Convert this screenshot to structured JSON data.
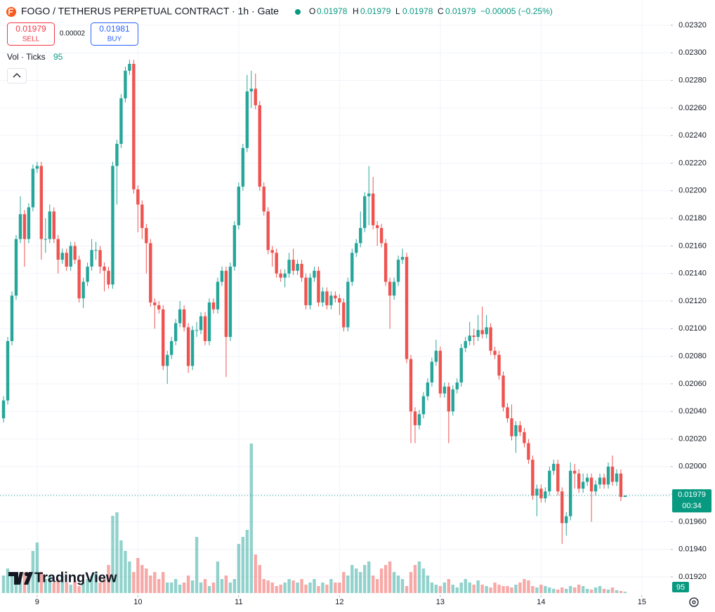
{
  "chart_data": {
    "type": "candlestick",
    "up_color": "#26a69a",
    "down_color": "#ef5350",
    "grid": true,
    "xlim": [
      -0.84,
      158.88
    ],
    "xticks": [
      {
        "value": 8,
        "label": "9"
      },
      {
        "value": 32,
        "label": "10"
      },
      {
        "value": 56,
        "label": "11"
      },
      {
        "value": 80,
        "label": "12"
      },
      {
        "value": 104,
        "label": "13"
      },
      {
        "value": 128,
        "label": "14"
      },
      {
        "value": 152,
        "label": "15"
      }
    ],
    "ylim": [
      0.019068,
      0.023383
    ],
    "yticks": [
      {
        "value": 0.0192,
        "label": "0.01920"
      },
      {
        "value": 0.0194,
        "label": "0.01940"
      },
      {
        "value": 0.0196,
        "label": "0.01960"
      },
      {
        "value": 0.0198,
        "label": "0.01980"
      },
      {
        "value": 0.02,
        "label": "0.02000"
      },
      {
        "value": 0.0202,
        "label": "0.02020"
      },
      {
        "value": 0.0204,
        "label": "0.02040"
      },
      {
        "value": 0.0206,
        "label": "0.02060"
      },
      {
        "value": 0.0208,
        "label": "0.02080"
      },
      {
        "value": 0.021,
        "label": "0.02100"
      },
      {
        "value": 0.0212,
        "label": "0.02120"
      },
      {
        "value": 0.0214,
        "label": "0.02140"
      },
      {
        "value": 0.0216,
        "label": "0.02160"
      },
      {
        "value": 0.0218,
        "label": "0.02180"
      },
      {
        "value": 0.022,
        "label": "0.02200"
      },
      {
        "value": 0.0222,
        "label": "0.02220"
      },
      {
        "value": 0.0224,
        "label": "0.02240"
      },
      {
        "value": 0.0226,
        "label": "0.02260"
      },
      {
        "value": 0.0228,
        "label": "0.02280"
      },
      {
        "value": 0.023,
        "label": "0.02300"
      },
      {
        "value": 0.0232,
        "label": "0.02320"
      }
    ],
    "vol_ylim": [
      0,
      12000
    ],
    "open": [
      0.02035,
      0.02048,
      0.02091,
      0.02124,
      0.02165,
      0.02183,
      0.02165,
      0.02188,
      0.02216,
      0.02218,
      0.02165,
      0.02165,
      0.02185,
      0.02165,
      0.0215,
      0.02155,
      0.02145,
      0.0216,
      0.0215,
      0.02122,
      0.02134,
      0.02145,
      0.02157,
      0.02157,
      0.02145,
      0.02142,
      0.02132,
      0.02218,
      0.02234,
      0.02267,
      0.02287,
      0.02292,
      0.02201,
      0.0219,
      0.02173,
      0.02162,
      0.02119,
      0.02117,
      0.02114,
      0.02073,
      0.02081,
      0.02091,
      0.02104,
      0.02114,
      0.02101,
      0.02073,
      0.02099,
      0.02099,
      0.02109,
      0.02091,
      0.02119,
      0.02114,
      0.02134,
      0.02142,
      0.02094,
      0.02145,
      0.02175,
      0.02203,
      0.02231,
      0.02272,
      0.02274,
      0.02262,
      0.02203,
      0.02185,
      0.02157,
      0.02155,
      0.0214,
      0.02137,
      0.0214,
      0.0215,
      0.02142,
      0.02147,
      0.02137,
      0.02117,
      0.02137,
      0.02142,
      0.02119,
      0.02127,
      0.02117,
      0.02124,
      0.02122,
      0.02119,
      0.02101,
      0.02134,
      0.02155,
      0.02162,
      0.02173,
      0.02196,
      0.02198,
      0.02175,
      0.02173,
      0.02162,
      0.02134,
      0.02124,
      0.02134,
      0.0215,
      0.02152,
      0.02078,
      0.0204,
      0.0203,
      0.02038,
      0.02051,
      0.02061,
      0.02076,
      0.02084,
      0.02053,
      0.02058,
      0.0204,
      0.02056,
      0.02061,
      0.02086,
      0.02091,
      0.02095,
      0.02094,
      0.02099,
      0.02096,
      0.02101,
      0.02084,
      0.02081,
      0.02066,
      0.02043,
      0.02035,
      0.02022,
      0.0203,
      0.02025,
      0.02017,
      0.02005,
      0.01979,
      0.01984,
      0.01977,
      0.01982,
      0.01997,
      0.02002,
      0.01982,
      0.01959,
      0.01964,
      0.01997,
      0.01995,
      0.01984,
      0.01989,
      0.01992,
      0.01982,
      0.01987,
      0.01992,
      0.01987,
      0.02,
      0.01989,
      0.01995,
      0.01978
    ],
    "high": [
      0.02051,
      0.02094,
      0.02127,
      0.02168,
      0.02196,
      0.02186,
      0.02191,
      0.02219,
      0.02221,
      0.02221,
      0.0218,
      0.0219,
      0.02188,
      0.02168,
      0.02158,
      0.02158,
      0.02163,
      0.02163,
      0.02153,
      0.02137,
      0.02148,
      0.02165,
      0.02163,
      0.0216,
      0.02148,
      0.02145,
      0.02221,
      0.02237,
      0.0227,
      0.0229,
      0.02295,
      0.02295,
      0.02204,
      0.02193,
      0.02176,
      0.02165,
      0.02122,
      0.0212,
      0.02117,
      0.02084,
      0.02094,
      0.02107,
      0.0212,
      0.02117,
      0.02104,
      0.02102,
      0.02105,
      0.02112,
      0.02112,
      0.02122,
      0.02122,
      0.02137,
      0.02145,
      0.02145,
      0.02148,
      0.02178,
      0.02206,
      0.02234,
      0.02284,
      0.02287,
      0.02285,
      0.02265,
      0.02206,
      0.02188,
      0.0216,
      0.02158,
      0.02143,
      0.02143,
      0.02155,
      0.02158,
      0.0215,
      0.0215,
      0.0214,
      0.0214,
      0.02145,
      0.02145,
      0.0213,
      0.0213,
      0.02127,
      0.02127,
      0.02125,
      0.02122,
      0.02137,
      0.02158,
      0.02165,
      0.02185,
      0.02199,
      0.02218,
      0.0221,
      0.02178,
      0.02176,
      0.02165,
      0.02137,
      0.02137,
      0.02153,
      0.02158,
      0.02155,
      0.02081,
      0.02043,
      0.02041,
      0.02054,
      0.02064,
      0.02079,
      0.02092,
      0.02087,
      0.02061,
      0.02061,
      0.02059,
      0.02064,
      0.02089,
      0.02094,
      0.02105,
      0.021,
      0.0211,
      0.02116,
      0.0211,
      0.02104,
      0.02087,
      0.02084,
      0.02069,
      0.02046,
      0.02045,
      0.02033,
      0.02033,
      0.02028,
      0.0202,
      0.02008,
      0.01987,
      0.01987,
      0.01985,
      0.02,
      0.02005,
      0.02005,
      0.01985,
      0.01967,
      0.02003,
      0.02002,
      0.01998,
      0.01995,
      0.01995,
      0.01995,
      0.0199,
      0.01995,
      0.01995,
      0.02003,
      0.02008,
      0.01998,
      0.01998,
      0.01979
    ],
    "low": [
      0.02032,
      0.02045,
      0.02088,
      0.02121,
      0.02162,
      0.02145,
      0.02162,
      0.02185,
      0.02213,
      0.0215,
      0.02155,
      0.02162,
      0.02162,
      0.0214,
      0.02147,
      0.02142,
      0.02142,
      0.02147,
      0.02119,
      0.02115,
      0.02131,
      0.02142,
      0.0215,
      0.0214,
      0.02127,
      0.02129,
      0.02129,
      0.0219,
      0.02231,
      0.02264,
      0.02284,
      0.02198,
      0.0217,
      0.02165,
      0.0214,
      0.02116,
      0.021,
      0.02111,
      0.0207,
      0.0206,
      0.02078,
      0.02088,
      0.02101,
      0.02098,
      0.02068,
      0.0207,
      0.02094,
      0.02096,
      0.02088,
      0.02088,
      0.02111,
      0.02111,
      0.02131,
      0.02065,
      0.02091,
      0.02142,
      0.02172,
      0.022,
      0.02228,
      0.0226,
      0.02259,
      0.022,
      0.02182,
      0.02154,
      0.02145,
      0.02137,
      0.02134,
      0.0213,
      0.02137,
      0.02139,
      0.02139,
      0.02134,
      0.02114,
      0.02114,
      0.02134,
      0.02116,
      0.02116,
      0.02114,
      0.02114,
      0.02119,
      0.0211,
      0.02098,
      0.02098,
      0.02131,
      0.02152,
      0.02159,
      0.0217,
      0.02175,
      0.02172,
      0.0216,
      0.02159,
      0.02131,
      0.021,
      0.02121,
      0.02131,
      0.02147,
      0.02075,
      0.02017,
      0.02017,
      0.02027,
      0.02035,
      0.02048,
      0.02058,
      0.02073,
      0.0205,
      0.0205,
      0.02017,
      0.02037,
      0.02053,
      0.02058,
      0.02083,
      0.02088,
      0.02088,
      0.02091,
      0.02093,
      0.02093,
      0.02081,
      0.02078,
      0.02063,
      0.0204,
      0.02032,
      0.02019,
      0.0201,
      0.02022,
      0.02014,
      0.02002,
      0.01976,
      0.01964,
      0.01974,
      0.01974,
      0.01979,
      0.01994,
      0.01979,
      0.01944,
      0.0195,
      0.01961,
      0.01984,
      0.01981,
      0.01981,
      0.01986,
      0.0196,
      0.01979,
      0.01984,
      0.01984,
      0.01984,
      0.01986,
      0.01986,
      0.01975,
      0.01978
    ],
    "close": [
      0.02048,
      0.02091,
      0.02124,
      0.02165,
      0.02183,
      0.02165,
      0.02188,
      0.02216,
      0.02218,
      0.02165,
      0.02165,
      0.02185,
      0.02165,
      0.0215,
      0.02155,
      0.02145,
      0.0216,
      0.0215,
      0.02122,
      0.02134,
      0.02145,
      0.02157,
      0.02157,
      0.02145,
      0.02142,
      0.02132,
      0.02218,
      0.02234,
      0.02267,
      0.02287,
      0.02292,
      0.02201,
      0.0219,
      0.02173,
      0.02162,
      0.02119,
      0.02117,
      0.02114,
      0.02073,
      0.02081,
      0.02091,
      0.02104,
      0.02114,
      0.02101,
      0.02073,
      0.02099,
      0.02099,
      0.02109,
      0.02091,
      0.02119,
      0.02114,
      0.02134,
      0.02142,
      0.02094,
      0.02145,
      0.02175,
      0.02203,
      0.02231,
      0.02272,
      0.02274,
      0.02262,
      0.02203,
      0.02185,
      0.02157,
      0.02155,
      0.0214,
      0.02137,
      0.0214,
      0.0215,
      0.02142,
      0.02147,
      0.02137,
      0.02117,
      0.02137,
      0.02142,
      0.02119,
      0.02127,
      0.02117,
      0.02124,
      0.02122,
      0.02119,
      0.02101,
      0.02134,
      0.02155,
      0.02162,
      0.02173,
      0.02196,
      0.02198,
      0.02175,
      0.02173,
      0.02162,
      0.02134,
      0.02124,
      0.02134,
      0.0215,
      0.02152,
      0.02078,
      0.0204,
      0.0203,
      0.02038,
      0.02051,
      0.02061,
      0.02076,
      0.02084,
      0.02053,
      0.02058,
      0.0204,
      0.02056,
      0.02061,
      0.02086,
      0.02091,
      0.02095,
      0.02094,
      0.02099,
      0.02096,
      0.02101,
      0.02084,
      0.02081,
      0.02066,
      0.02043,
      0.02035,
      0.02022,
      0.0203,
      0.02025,
      0.02017,
      0.02005,
      0.01979,
      0.01984,
      0.01977,
      0.01982,
      0.01997,
      0.02002,
      0.01982,
      0.01959,
      0.01964,
      0.01997,
      0.01995,
      0.01984,
      0.01989,
      0.01992,
      0.01982,
      0.01987,
      0.01992,
      0.01987,
      0.02,
      0.01989,
      0.01995,
      0.01978,
      0.01979
    ],
    "volume": [
      1250,
      1750,
      1500,
      1000,
      900,
      1500,
      1250,
      3000,
      3600,
      1500,
      1000,
      1250,
      750,
      1000,
      1250,
      750,
      600,
      900,
      500,
      750,
      1000,
      1250,
      1500,
      750,
      1000,
      2000,
      5500,
      5750,
      3750,
      3000,
      2250,
      1500,
      2500,
      2000,
      1750,
      1250,
      1500,
      1000,
      1500,
      750,
      750,
      1000,
      600,
      750,
      1250,
      900,
      4000,
      750,
      1000,
      500,
      750,
      2250,
      1000,
      1250,
      750,
      1000,
      3500,
      4000,
      4500,
      10650,
      2750,
      2000,
      1000,
      900,
      750,
      500,
      600,
      750,
      1000,
      900,
      750,
      1000,
      600,
      750,
      1000,
      500,
      750,
      600,
      1000,
      750,
      750,
      1500,
      1250,
      2000,
      1750,
      1500,
      2000,
      2250,
      1250,
      1000,
      1750,
      2000,
      2250,
      1500,
      1250,
      1000,
      500,
      1500,
      2000,
      2250,
      1750,
      1250,
      750,
      600,
      500,
      750,
      1000,
      600,
      400,
      750,
      1000,
      750,
      600,
      900,
      600,
      500,
      400,
      750,
      600,
      500,
      500,
      400,
      600,
      750,
      1000,
      900,
      500,
      400,
      600,
      500,
      400,
      300,
      250,
      400,
      300,
      500,
      400,
      600,
      500,
      300,
      250,
      400,
      500,
      300,
      250,
      400,
      200,
      150,
      95
    ]
  },
  "ui": {
    "symbol_title": "FOGO / TETHERUS PERPETUAL CONTRACT · 1h · Gate",
    "ohlc": [
      {
        "label": "O",
        "value": "0.01978"
      },
      {
        "label": "H",
        "value": "0.01979"
      },
      {
        "label": "L",
        "value": "0.01978"
      },
      {
        "label": "C",
        "value": "0.01979"
      }
    ],
    "change": "−0.00005 (−0.25%)",
    "sell_price": "0.01979",
    "sell_label": "SELL",
    "spread": "0.00002",
    "buy_price": "0.01981",
    "buy_label": "BUY",
    "indicator": "Vol · Ticks",
    "indicator_value": "95",
    "price_label": "0.01979",
    "countdown": "00:34",
    "volume_label": "95",
    "watermark": "TradingView"
  }
}
